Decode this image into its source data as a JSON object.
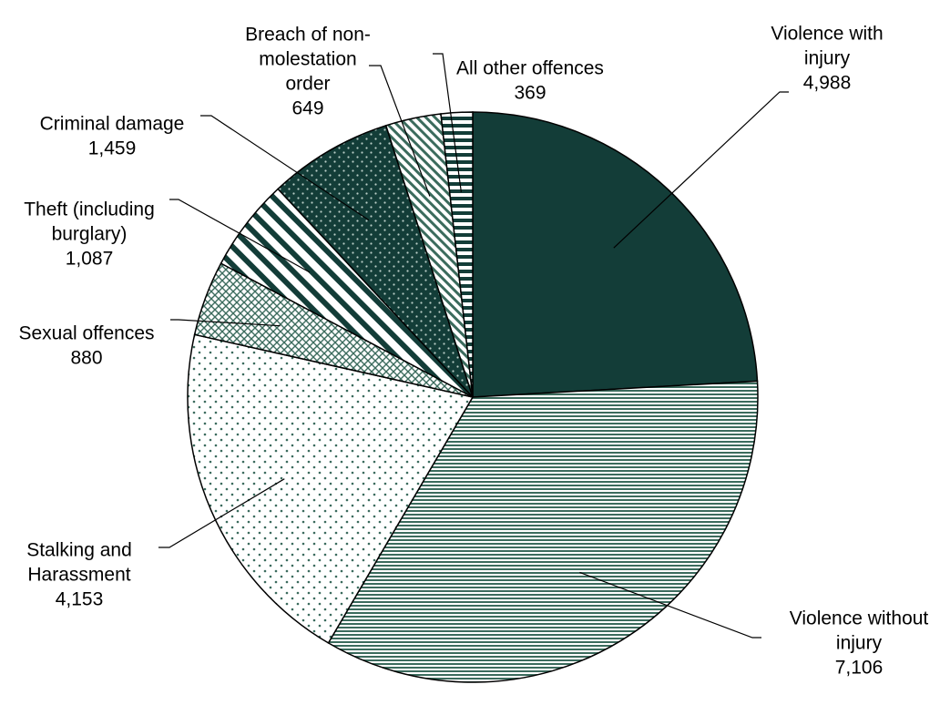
{
  "chart_data": {
    "type": "pie",
    "title": "",
    "legend": "none",
    "start_angle_deg": 0,
    "direction": "clockwise",
    "slices": [
      {
        "label_lines": [
          "Violence with",
          "injury"
        ],
        "value": 4988,
        "value_text": "4,988",
        "pattern": "solid-dark",
        "color": "#133d38"
      },
      {
        "label_lines": [
          "Violence without",
          "injury"
        ],
        "value": 7106,
        "value_text": "7,106",
        "pattern": "horizontal-stripes",
        "color": "#3b6b5d"
      },
      {
        "label_lines": [
          "Stalking and",
          "Harassment"
        ],
        "value": 4153,
        "value_text": "4,153",
        "pattern": "sparse-dots",
        "color": "#3b6b5d"
      },
      {
        "label_lines": [
          "Sexual offences"
        ],
        "value": 880,
        "value_text": "880",
        "pattern": "crosshatch",
        "color": "#3b6b5d"
      },
      {
        "label_lines": [
          "Theft (including",
          "burglary)"
        ],
        "value": 1087,
        "value_text": "1,087",
        "pattern": "wide-diagonal-stripes",
        "color": "#133d38"
      },
      {
        "label_lines": [
          "Criminal damage"
        ],
        "value": 1459,
        "value_text": "1,459",
        "pattern": "dark-with-dots",
        "color": "#133d38"
      },
      {
        "label_lines": [
          "Breach of non-",
          "molestation",
          "order"
        ],
        "value": 649,
        "value_text": "649",
        "pattern": "fine-diagonal-stripes",
        "color": "#3b6b5d"
      },
      {
        "label_lines": [
          "All other offences"
        ],
        "value": 369,
        "value_text": "369",
        "pattern": "thick-horizontal-stripes",
        "color": "#133d38"
      }
    ]
  }
}
